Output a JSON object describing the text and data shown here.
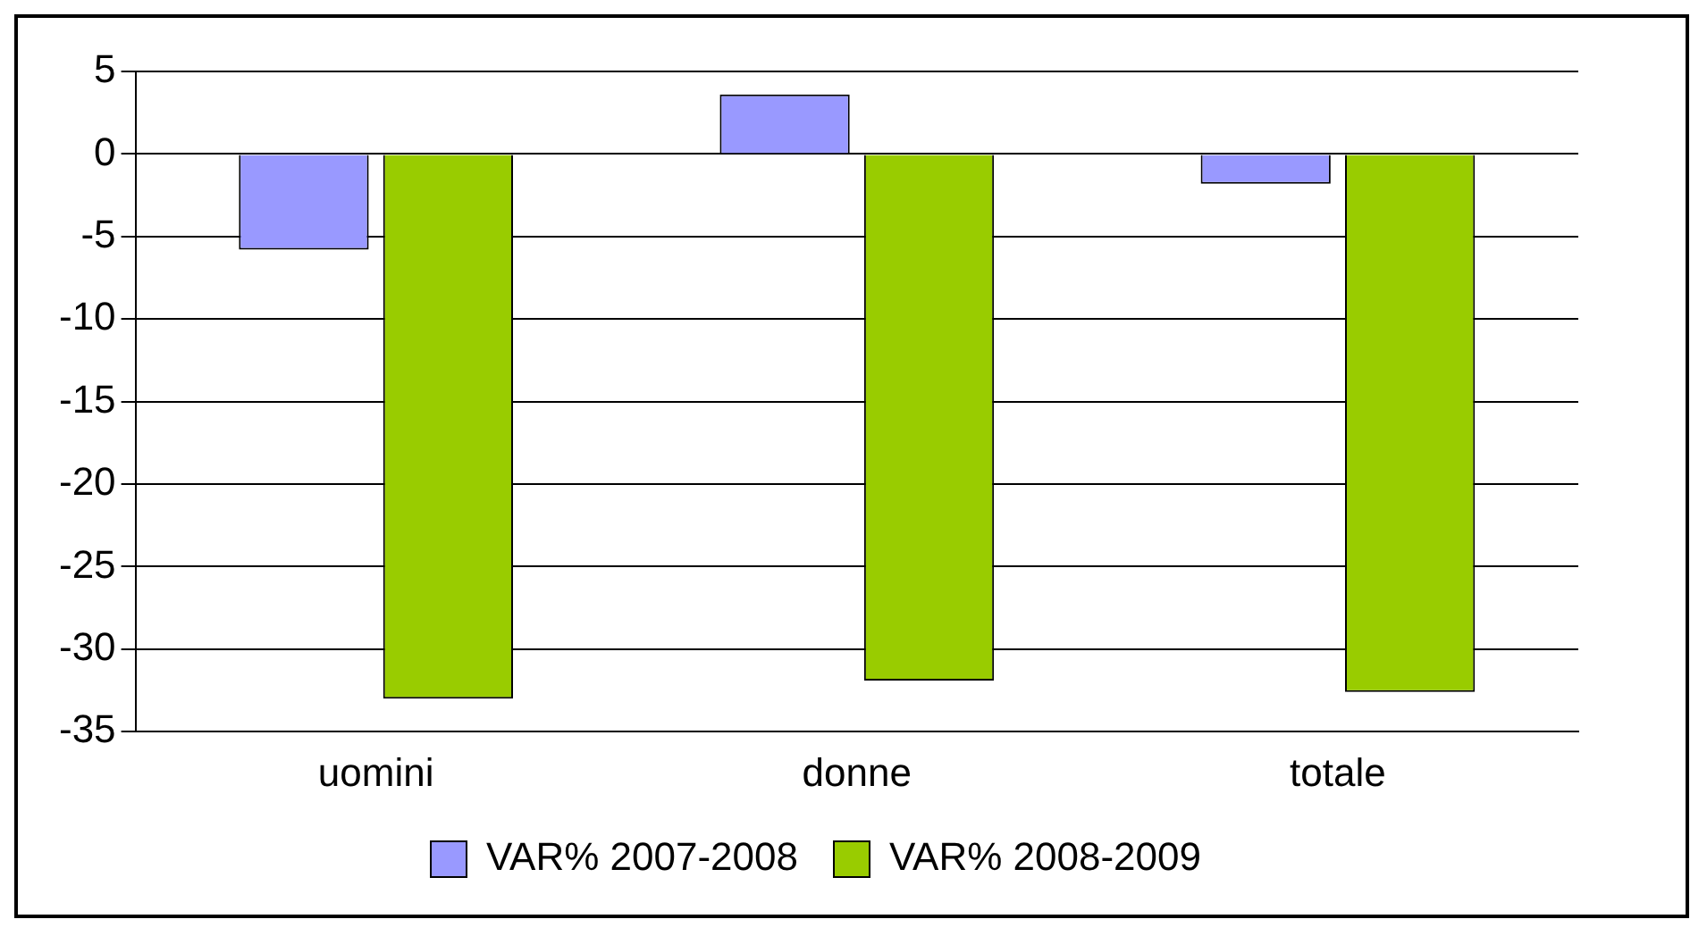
{
  "chart_data": {
    "type": "bar",
    "categories": [
      "uomini",
      "donne",
      "totale"
    ],
    "series": [
      {
        "name": "VAR% 2007-2008",
        "color": "#9999ff",
        "values": [
          -5.8,
          3.6,
          -1.8
        ]
      },
      {
        "name": "VAR% 2008-2009",
        "color": "#99cc00",
        "values": [
          -33,
          -31.9,
          -32.6
        ]
      }
    ],
    "ylim": [
      -35,
      5
    ],
    "yticks": [
      -35,
      -30,
      -25,
      -20,
      -15,
      -10,
      -5,
      0,
      5
    ],
    "grid": "y",
    "legend": "bottom"
  }
}
